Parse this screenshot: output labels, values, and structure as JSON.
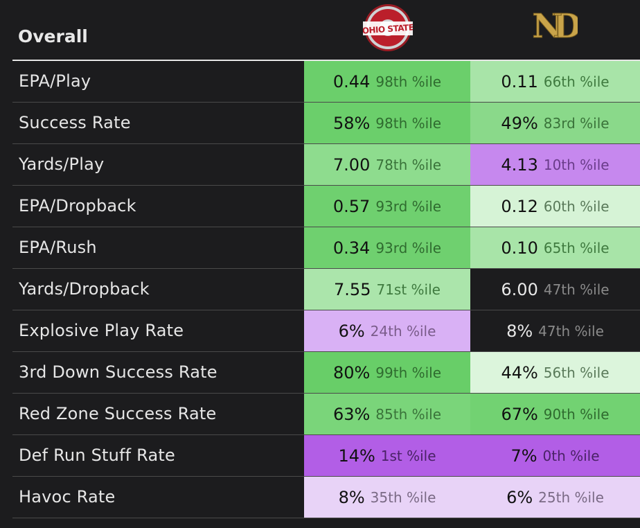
{
  "header": {
    "title": "Overall",
    "team1_logo_text": "OHIO STATE",
    "team2_logo_text": "ND"
  },
  "chart_data": {
    "type": "table",
    "columns": [
      "OHIO STATE",
      "ND"
    ],
    "rows": [
      {
        "label": "EPA/Play",
        "cells": [
          {
            "value": "0.44",
            "pct": "98th %ile",
            "bg": "#6bcf6b",
            "pc": "#2f6b2f"
          },
          {
            "value": "0.11",
            "pct": "66th %ile",
            "bg": "#a8e4a8",
            "pc": "#3f7a3f"
          }
        ]
      },
      {
        "label": "Success Rate",
        "cells": [
          {
            "value": "58%",
            "pct": "98th %ile",
            "bg": "#6bcf6b",
            "pc": "#2f6b2f"
          },
          {
            "value": "49%",
            "pct": "83rd %ile",
            "bg": "#8ad98a",
            "pc": "#3a733a"
          }
        ]
      },
      {
        "label": "Yards/Play",
        "cells": [
          {
            "value": "7.00",
            "pct": "78th %ile",
            "bg": "#8edc8e",
            "pc": "#3a733a"
          },
          {
            "value": "4.13",
            "pct": "10th %ile",
            "bg": "#c688ee",
            "pc": "#6a3c8a"
          }
        ]
      },
      {
        "label": "EPA/Dropback",
        "cells": [
          {
            "value": "0.57",
            "pct": "93rd %ile",
            "bg": "#6fd06f",
            "pc": "#2f6b2f"
          },
          {
            "value": "0.12",
            "pct": "60th %ile",
            "bg": "#d6f3d6",
            "pc": "#5a7a5a"
          }
        ]
      },
      {
        "label": "EPA/Rush",
        "cells": [
          {
            "value": "0.34",
            "pct": "93rd %ile",
            "bg": "#6fd06f",
            "pc": "#2f6b2f"
          },
          {
            "value": "0.10",
            "pct": "65th %ile",
            "bg": "#a8e4a8",
            "pc": "#3f7a3f"
          }
        ]
      },
      {
        "label": "Yards/Dropback",
        "cells": [
          {
            "value": "7.55",
            "pct": "71st %ile",
            "bg": "#abe5ab",
            "pc": "#3f7a3f"
          },
          {
            "value": "6.00",
            "pct": "47th %ile",
            "bg": "#1c1c1e",
            "pc": "#8a8a8a",
            "dark": true
          }
        ]
      },
      {
        "label": "Explosive Play Rate",
        "cells": [
          {
            "value": "6%",
            "pct": "24th %ile",
            "bg": "#d9b1f5",
            "pc": "#7a5c8a"
          },
          {
            "value": "8%",
            "pct": "47th %ile",
            "bg": "#1c1c1e",
            "pc": "#8a8a8a",
            "dark": true
          }
        ]
      },
      {
        "label": "3rd Down Success Rate",
        "cells": [
          {
            "value": "80%",
            "pct": "99th %ile",
            "bg": "#68ce68",
            "pc": "#2f6b2f"
          },
          {
            "value": "44%",
            "pct": "56th %ile",
            "bg": "#dcf5dc",
            "pc": "#5a7a5a"
          }
        ]
      },
      {
        "label": "Red Zone Success Rate",
        "cells": [
          {
            "value": "63%",
            "pct": "85th %ile",
            "bg": "#7ad57a",
            "pc": "#3a733a"
          },
          {
            "value": "67%",
            "pct": "90th %ile",
            "bg": "#72d272",
            "pc": "#2f6b2f"
          }
        ]
      },
      {
        "label": "Def Run Stuff Rate",
        "cells": [
          {
            "value": "14%",
            "pct": "1st %ile",
            "bg": "#b25ee6",
            "pc": "#4a2266"
          },
          {
            "value": "7%",
            "pct": "0th %ile",
            "bg": "#b25ee6",
            "pc": "#4a2266"
          }
        ]
      },
      {
        "label": "Havoc Rate",
        "cells": [
          {
            "value": "8%",
            "pct": "35th %ile",
            "bg": "#e8d3f7",
            "pc": "#7a6a85"
          },
          {
            "value": "6%",
            "pct": "25th %ile",
            "bg": "#e8d3f7",
            "pc": "#7a6a85"
          }
        ]
      }
    ]
  }
}
